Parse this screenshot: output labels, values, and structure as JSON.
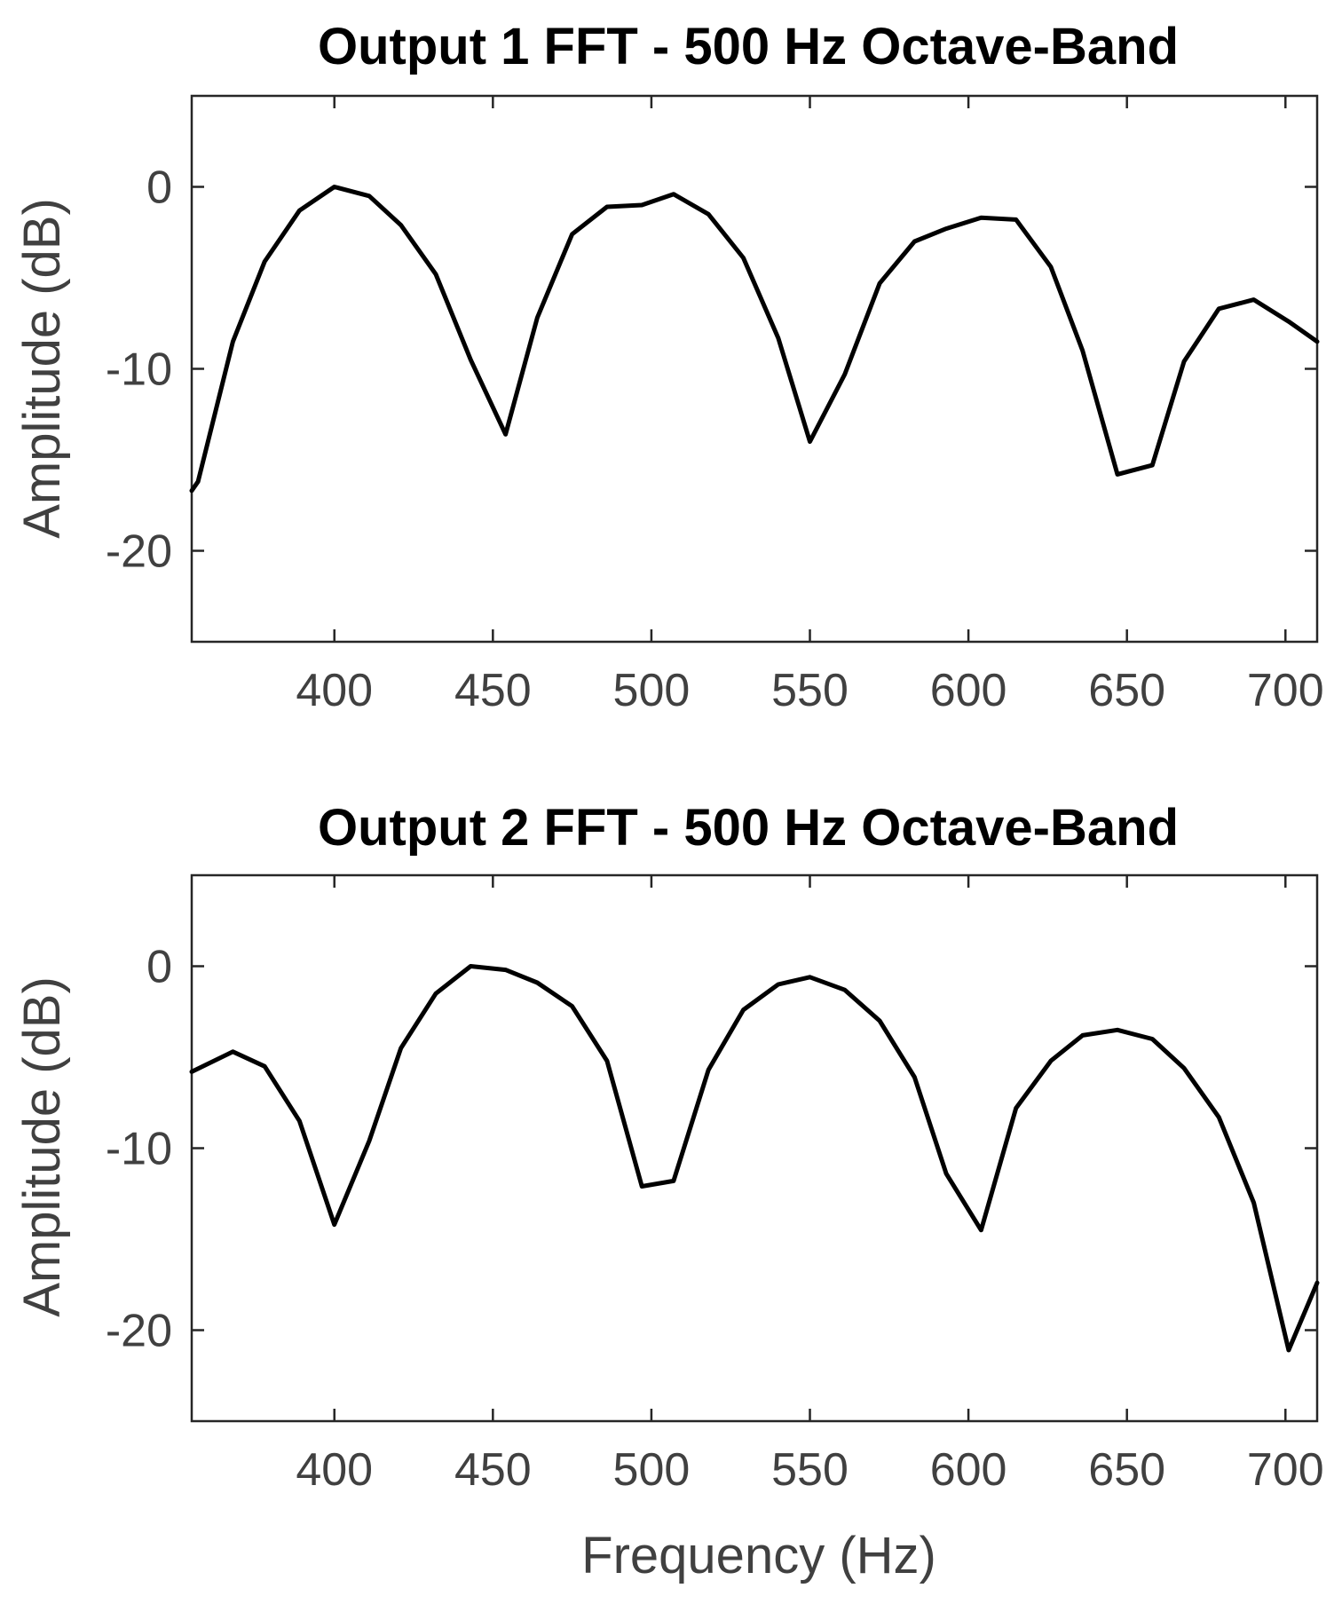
{
  "chart_data": [
    {
      "type": "line",
      "title": "Output 1 FFT - 500 Hz Octave-Band",
      "xlabel": "",
      "ylabel": "Amplitude (dB)",
      "xlim": [
        355,
        710
      ],
      "ylim": [
        -25,
        5
      ],
      "xticks": [
        400,
        450,
        500,
        550,
        600,
        650,
        700
      ],
      "yticks": [
        0,
        -10,
        -20
      ],
      "grid": false,
      "series": [
        {
          "color": "#000000",
          "x": [
            355,
            357,
            368,
            378,
            389,
            400,
            411,
            421,
            432,
            443,
            454,
            464,
            475,
            486,
            497,
            507,
            518,
            529,
            540,
            550,
            561,
            572,
            583,
            593,
            604,
            615,
            626,
            636,
            647,
            658,
            668,
            679,
            690,
            701,
            710
          ],
          "y": [
            -16.7,
            -16.2,
            -8.5,
            -4.1,
            -1.3,
            0,
            -0.5,
            -2.1,
            -4.8,
            -9.5,
            -13.6,
            -7.2,
            -2.6,
            -1.1,
            -1.0,
            -0.4,
            -1.5,
            -3.9,
            -8.3,
            -14.0,
            -10.3,
            -5.3,
            -3.0,
            -2.3,
            -1.7,
            -1.8,
            -4.4,
            -9.0,
            -15.8,
            -15.3,
            -9.6,
            -6.7,
            -6.2,
            -7.4,
            -8.5
          ]
        }
      ]
    },
    {
      "type": "line",
      "title": "Output 2 FFT - 500 Hz Octave-Band",
      "xlabel": "Frequency (Hz)",
      "ylabel": "Amplitude (dB)",
      "xlim": [
        355,
        710
      ],
      "ylim": [
        -25,
        5
      ],
      "xticks": [
        400,
        450,
        500,
        550,
        600,
        650,
        700
      ],
      "yticks": [
        0,
        -10,
        -20
      ],
      "grid": false,
      "series": [
        {
          "color": "#000000",
          "x": [
            355,
            368,
            378,
            389,
            400,
            411,
            421,
            432,
            443,
            454,
            464,
            475,
            486,
            497,
            507,
            518,
            529,
            540,
            550,
            561,
            572,
            583,
            593,
            604,
            615,
            626,
            636,
            647,
            658,
            668,
            679,
            690,
            701,
            710
          ],
          "y": [
            -5.8,
            -4.7,
            -5.5,
            -8.5,
            -14.2,
            -9.6,
            -4.5,
            -1.5,
            0,
            -0.2,
            -0.9,
            -2.2,
            -5.2,
            -12.1,
            -11.8,
            -5.7,
            -2.4,
            -1.0,
            -0.6,
            -1.3,
            -3.0,
            -6.1,
            -11.4,
            -14.5,
            -7.8,
            -5.2,
            -3.8,
            -3.5,
            -4.0,
            -5.6,
            -8.3,
            -13.0,
            -21.1,
            -17.4
          ]
        }
      ]
    }
  ]
}
